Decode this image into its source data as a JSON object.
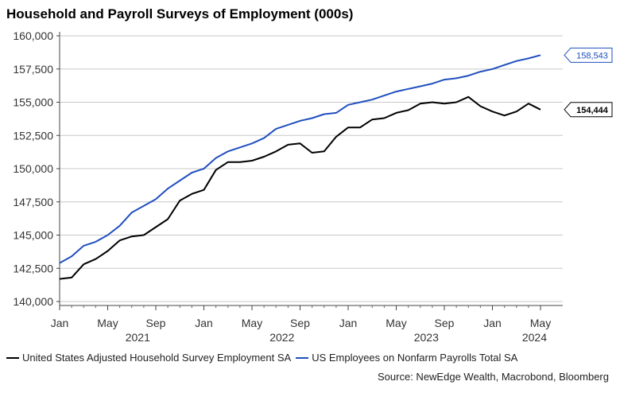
{
  "chart_data": {
    "type": "line",
    "title": "Household and Payroll Surveys of Employment (000s)",
    "ylim": [
      140000,
      160000
    ],
    "y_ticks": [
      "140,000",
      "142,500",
      "145,000",
      "147,500",
      "150,000",
      "152,500",
      "155,000",
      "157,500",
      "160,000"
    ],
    "y_tick_values": [
      140000,
      142500,
      145000,
      147500,
      150000,
      152500,
      155000,
      157500,
      160000
    ],
    "x_tick_labels": [
      "Jan",
      "May",
      "Sep",
      "Jan",
      "May",
      "Sep",
      "Jan",
      "May",
      "Sep",
      "Jan",
      "May"
    ],
    "x_tick_months": [
      0,
      4,
      8,
      12,
      16,
      20,
      24,
      28,
      32,
      36,
      40
    ],
    "year_labels": [
      "2021",
      "2022",
      "2023",
      "2024"
    ],
    "year_label_months": [
      6.5,
      18.5,
      30.5,
      39.5
    ],
    "x": [
      "2021-01",
      "2021-02",
      "2021-03",
      "2021-04",
      "2021-05",
      "2021-06",
      "2021-07",
      "2021-08",
      "2021-09",
      "2021-10",
      "2021-11",
      "2021-12",
      "2022-01",
      "2022-02",
      "2022-03",
      "2022-04",
      "2022-05",
      "2022-06",
      "2022-07",
      "2022-08",
      "2022-09",
      "2022-10",
      "2022-11",
      "2022-12",
      "2023-01",
      "2023-02",
      "2023-03",
      "2023-04",
      "2023-05",
      "2023-06",
      "2023-07",
      "2023-08",
      "2023-09",
      "2023-10",
      "2023-11",
      "2023-12",
      "2024-01",
      "2024-02",
      "2024-03",
      "2024-04",
      "2024-05"
    ],
    "series": [
      {
        "name": "United States Adjusted Household Survey Employment SA",
        "color": "#000000",
        "last_label": "154,444",
        "values": [
          141700,
          141800,
          142800,
          143200,
          143800,
          144600,
          144900,
          145000,
          145600,
          146200,
          147600,
          148100,
          148400,
          149900,
          150500,
          150500,
          150600,
          150900,
          151300,
          151800,
          151900,
          151200,
          151300,
          152400,
          153100,
          153100,
          153700,
          153800,
          154200,
          154400,
          154900,
          155000,
          154900,
          155000,
          155400,
          154700,
          154300,
          154000,
          154300,
          154900,
          154444
        ]
      },
      {
        "name": "US Employees on Nonfarm Payrolls Total SA",
        "color": "#1f4fbf",
        "last_label": "158,543",
        "values": [
          142900,
          143400,
          144200,
          144500,
          145000,
          145700,
          146700,
          147200,
          147700,
          148500,
          149100,
          149700,
          150000,
          150800,
          151300,
          151600,
          151900,
          152300,
          153000,
          153300,
          153600,
          153800,
          154100,
          154200,
          154800,
          155000,
          155200,
          155500,
          155800,
          156000,
          156200,
          156400,
          156700,
          156800,
          157000,
          157300,
          157500,
          157800,
          158100,
          158300,
          158543
        ]
      }
    ],
    "legend": [
      "United States Adjusted Household Survey Employment SA",
      "US Employees on Nonfarm Payrolls Total SA"
    ],
    "source": "Source: NewEdge Wealth, Macrobond, Bloomberg"
  }
}
